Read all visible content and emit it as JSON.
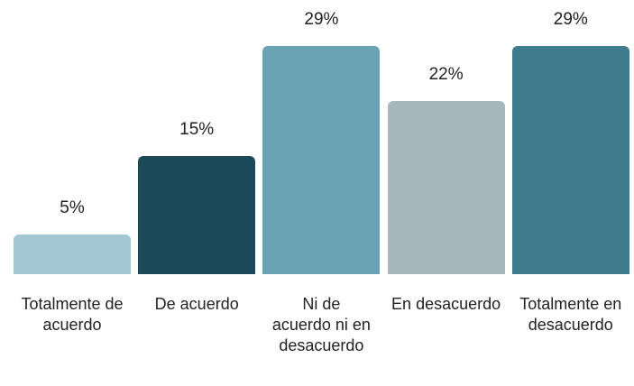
{
  "chart_data": {
    "type": "bar",
    "categories": [
      "Totalmente de acuerdo",
      "De acuerdo",
      "Ni de acuerdo ni en desacuerdo",
      "En desacuerdo",
      "Totalmente en desacuerdo"
    ],
    "values": [
      5,
      15,
      29,
      22,
      29
    ],
    "value_labels": [
      "5%",
      "15%",
      "29%",
      "22%",
      "29%"
    ],
    "colors": [
      "#a3c8d3",
      "#1c4a5a",
      "#6aa3b4",
      "#a6b8be",
      "#3d7b8d"
    ]
  }
}
